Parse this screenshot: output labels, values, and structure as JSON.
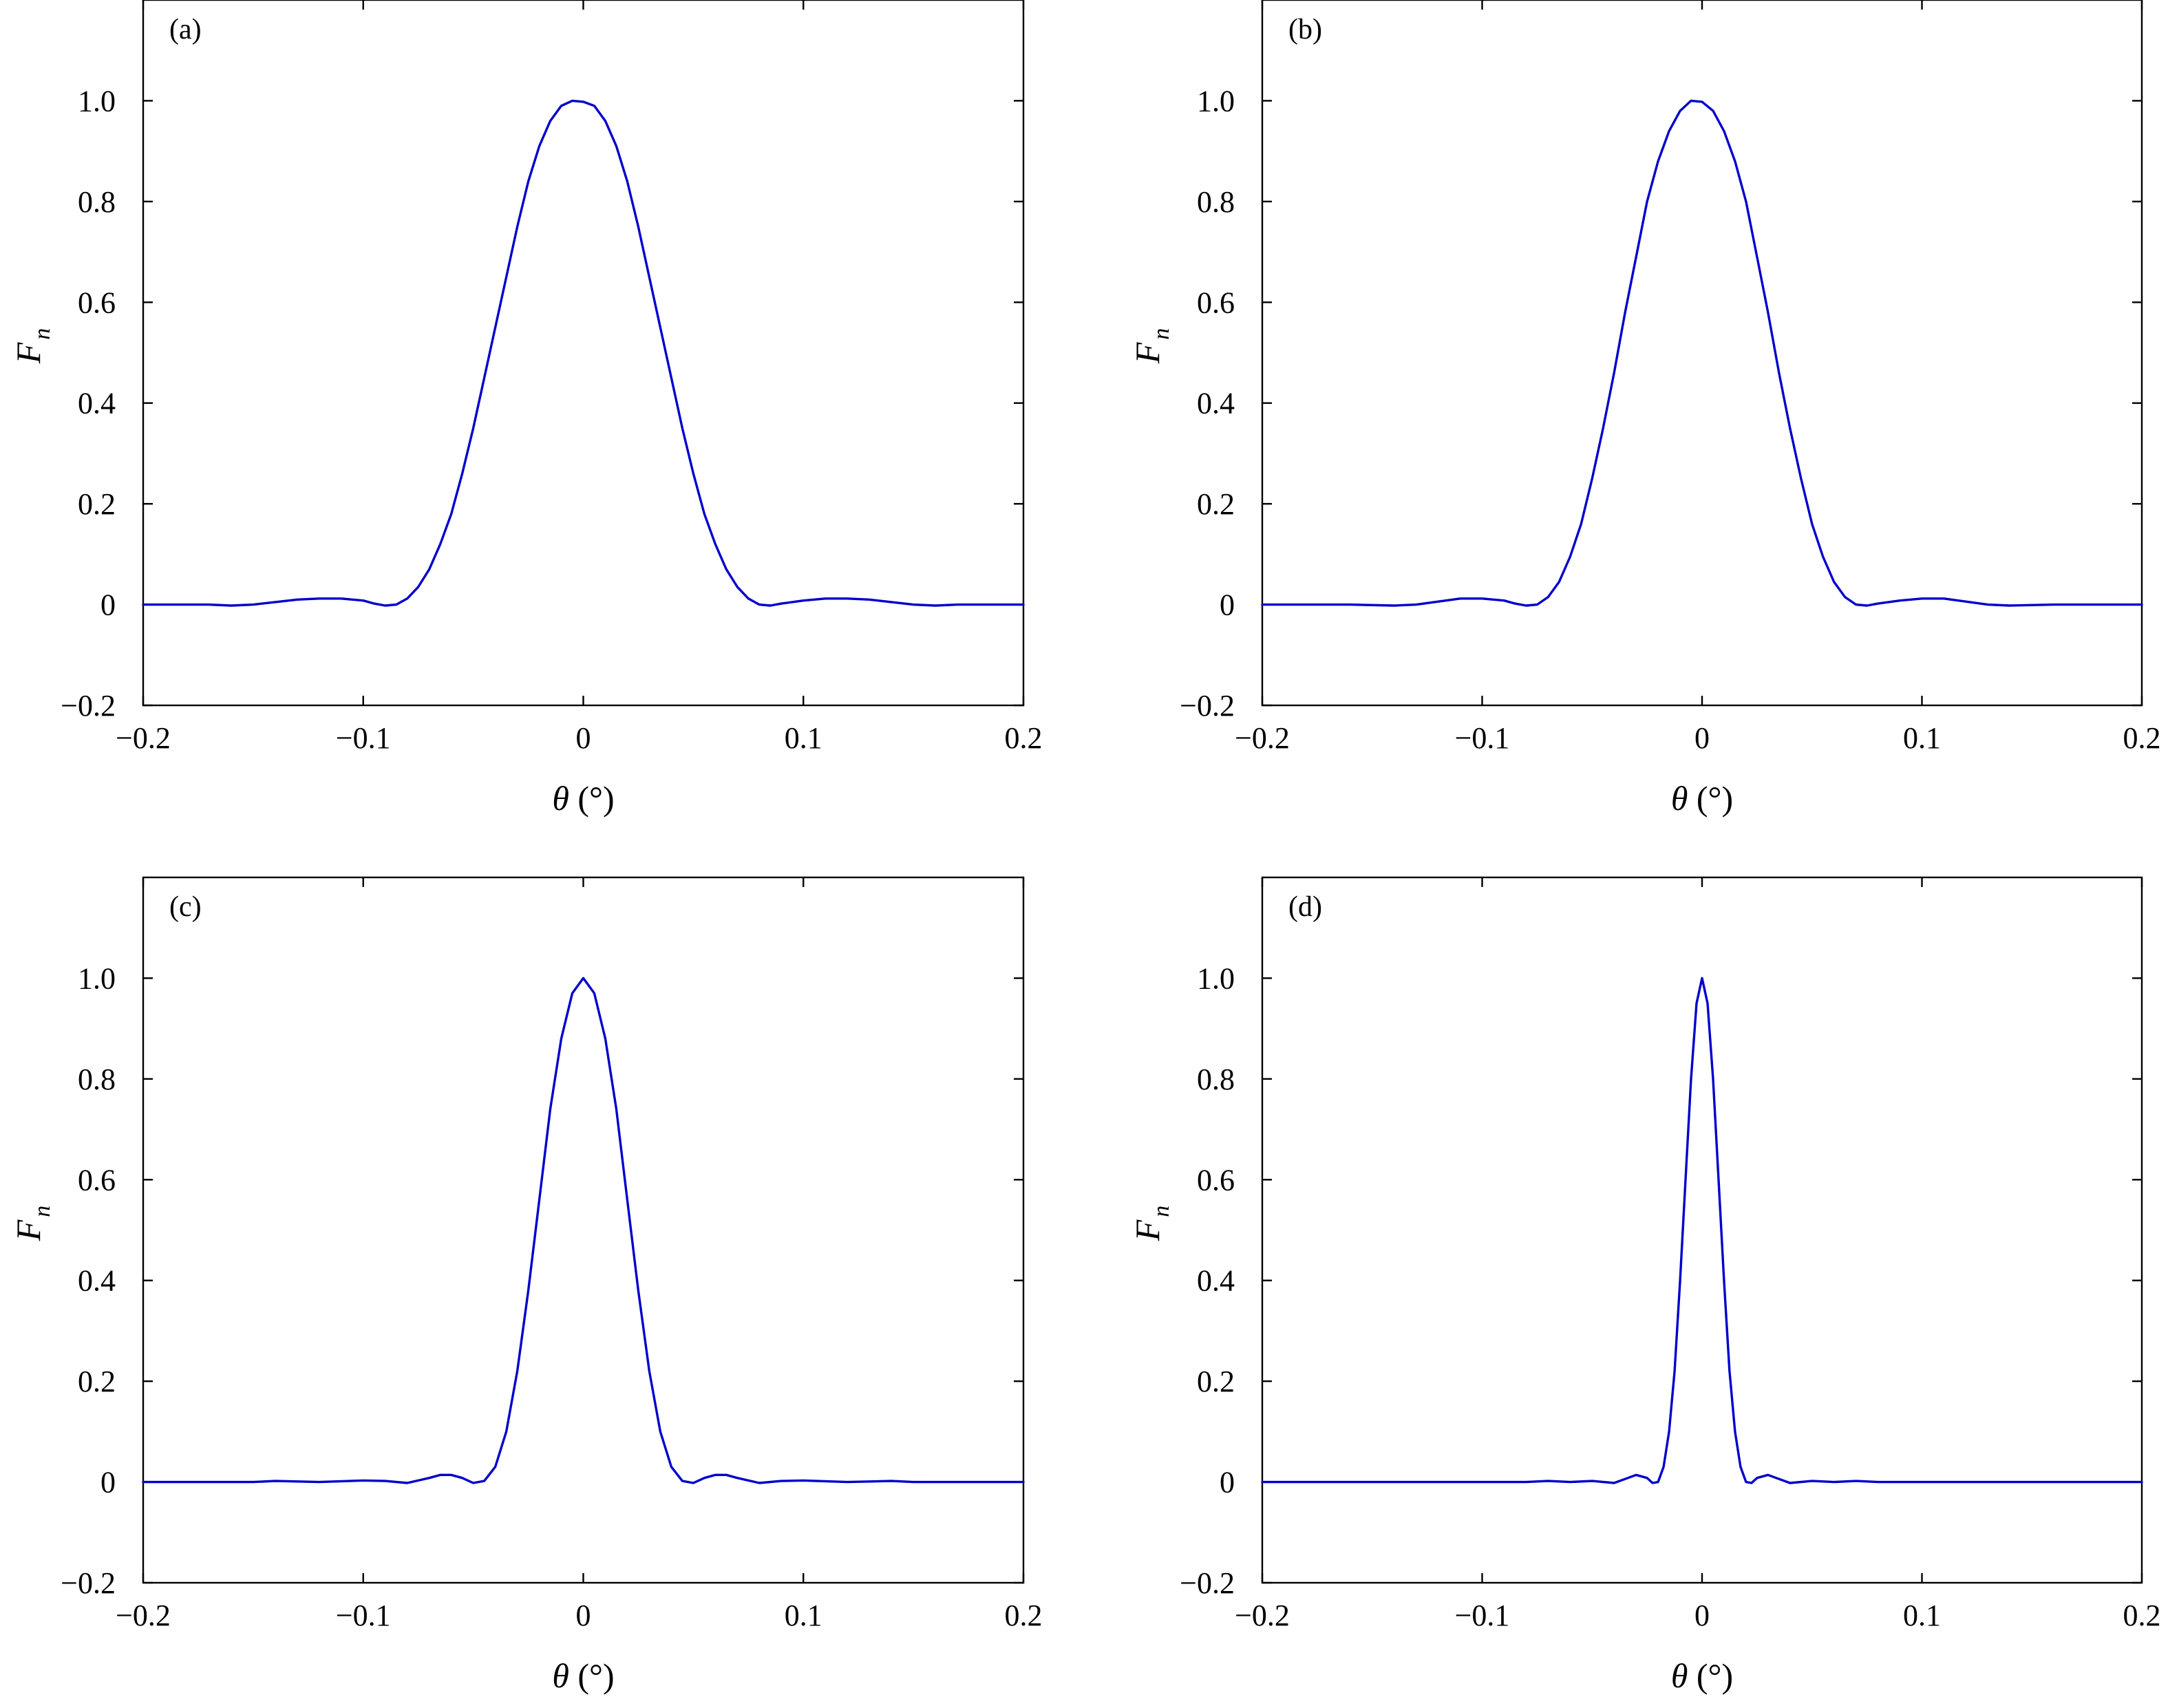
{
  "chart_data": [
    {
      "type": "line",
      "panel_label": "(a)",
      "xlabel_symbol": "θ",
      "xlabel_unit": " (°)",
      "ylabel_main": "F",
      "ylabel_sub": "n",
      "xlim": [
        -0.2,
        0.2
      ],
      "ylim": [
        -0.2,
        1.2
      ],
      "xticks": [
        -0.2,
        -0.1,
        0,
        0.1,
        0.2
      ],
      "xtick_labels": [
        "−0.2",
        "−0.1",
        "0",
        "0.1",
        "0.2"
      ],
      "yticks": [
        -0.2,
        0,
        0.2,
        0.4,
        0.6,
        0.8,
        1.0
      ],
      "ytick_labels": [
        "−0.2",
        "0",
        "0.2",
        "0.4",
        "0.6",
        "0.8",
        "1.0"
      ],
      "grid": false,
      "series": [
        {
          "color": "#0000cc",
          "x": [
            -0.2,
            -0.17,
            -0.16,
            -0.15,
            -0.14,
            -0.13,
            -0.12,
            -0.11,
            -0.1,
            -0.095,
            -0.09,
            -0.085,
            -0.08,
            -0.075,
            -0.07,
            -0.065,
            -0.06,
            -0.055,
            -0.05,
            -0.045,
            -0.04,
            -0.035,
            -0.03,
            -0.025,
            -0.02,
            -0.015,
            -0.01,
            -0.005,
            0,
            0.005,
            0.01,
            0.015,
            0.02,
            0.025,
            0.03,
            0.035,
            0.04,
            0.045,
            0.05,
            0.055,
            0.06,
            0.065,
            0.07,
            0.075,
            0.08,
            0.085,
            0.09,
            0.1,
            0.11,
            0.12,
            0.13,
            0.14,
            0.15,
            0.16,
            0.17,
            0.2
          ],
          "y": [
            0,
            0,
            -0.002,
            0,
            0.005,
            0.01,
            0.012,
            0.012,
            0.008,
            0.002,
            -0.002,
            0.0,
            0.012,
            0.035,
            0.07,
            0.12,
            0.18,
            0.26,
            0.35,
            0.45,
            0.55,
            0.65,
            0.75,
            0.84,
            0.91,
            0.96,
            0.99,
            1.0,
            0.998,
            0.99,
            0.96,
            0.91,
            0.84,
            0.75,
            0.65,
            0.55,
            0.45,
            0.35,
            0.26,
            0.18,
            0.12,
            0.07,
            0.035,
            0.012,
            0.0,
            -0.002,
            0.002,
            0.008,
            0.012,
            0.012,
            0.01,
            0.005,
            0,
            -0.002,
            0,
            0
          ]
        }
      ]
    },
    {
      "type": "line",
      "panel_label": "(b)",
      "xlabel_symbol": "θ",
      "xlabel_unit": " (°)",
      "ylabel_main": "F",
      "ylabel_sub": "n",
      "xlim": [
        -0.2,
        0.2
      ],
      "ylim": [
        -0.2,
        1.2
      ],
      "xticks": [
        -0.2,
        -0.1,
        0,
        0.1,
        0.2
      ],
      "xtick_labels": [
        "−0.2",
        "−0.1",
        "0",
        "0.1",
        "0.2"
      ],
      "yticks": [
        -0.2,
        0,
        0.2,
        0.4,
        0.6,
        0.8,
        1.0
      ],
      "ytick_labels": [
        "−0.2",
        "0",
        "0.2",
        "0.4",
        "0.6",
        "0.8",
        "1.0"
      ],
      "grid": false,
      "series": [
        {
          "color": "#0000cc",
          "x": [
            -0.2,
            -0.16,
            -0.14,
            -0.13,
            -0.12,
            -0.11,
            -0.1,
            -0.09,
            -0.085,
            -0.08,
            -0.075,
            -0.07,
            -0.065,
            -0.06,
            -0.055,
            -0.05,
            -0.045,
            -0.04,
            -0.035,
            -0.03,
            -0.025,
            -0.02,
            -0.015,
            -0.01,
            -0.005,
            0,
            0.005,
            0.01,
            0.015,
            0.02,
            0.025,
            0.03,
            0.035,
            0.04,
            0.045,
            0.05,
            0.055,
            0.06,
            0.065,
            0.07,
            0.075,
            0.08,
            0.09,
            0.1,
            0.11,
            0.12,
            0.13,
            0.14,
            0.16,
            0.2
          ],
          "y": [
            0,
            0,
            -0.002,
            0,
            0.006,
            0.012,
            0.012,
            0.008,
            0.002,
            -0.002,
            0.0,
            0.015,
            0.045,
            0.095,
            0.16,
            0.25,
            0.35,
            0.46,
            0.58,
            0.69,
            0.8,
            0.88,
            0.94,
            0.98,
            1.0,
            0.998,
            0.98,
            0.94,
            0.88,
            0.8,
            0.69,
            0.58,
            0.46,
            0.35,
            0.25,
            0.16,
            0.095,
            0.045,
            0.015,
            0.0,
            -0.002,
            0.002,
            0.008,
            0.012,
            0.012,
            0.006,
            0,
            -0.002,
            0,
            0
          ]
        }
      ]
    },
    {
      "type": "line",
      "panel_label": "(c)",
      "xlabel_symbol": "θ",
      "xlabel_unit": " (°)",
      "ylabel_main": "F",
      "ylabel_sub": "n",
      "xlim": [
        -0.2,
        0.2
      ],
      "ylim": [
        -0.2,
        1.2
      ],
      "xticks": [
        -0.2,
        -0.1,
        0,
        0.1,
        0.2
      ],
      "xtick_labels": [
        "−0.2",
        "−0.1",
        "0",
        "0.1",
        "0.2"
      ],
      "yticks": [
        -0.2,
        0,
        0.2,
        0.4,
        0.6,
        0.8,
        1.0
      ],
      "ytick_labels": [
        "−0.2",
        "0",
        "0.2",
        "0.4",
        "0.6",
        "0.8",
        "1.0"
      ],
      "grid": false,
      "series": [
        {
          "color": "#0000cc",
          "x": [
            -0.2,
            -0.15,
            -0.14,
            -0.12,
            -0.1,
            -0.09,
            -0.08,
            -0.07,
            -0.065,
            -0.06,
            -0.055,
            -0.05,
            -0.045,
            -0.04,
            -0.035,
            -0.03,
            -0.025,
            -0.02,
            -0.015,
            -0.01,
            -0.005,
            0,
            0.005,
            0.01,
            0.015,
            0.02,
            0.025,
            0.03,
            0.035,
            0.04,
            0.045,
            0.05,
            0.055,
            0.06,
            0.065,
            0.07,
            0.08,
            0.09,
            0.1,
            0.12,
            0.14,
            0.15,
            0.2
          ],
          "y": [
            0,
            0,
            0.002,
            0,
            0.003,
            0.002,
            -0.002,
            0.008,
            0.014,
            0.014,
            0.008,
            -0.002,
            0.002,
            0.03,
            0.1,
            0.22,
            0.38,
            0.56,
            0.74,
            0.88,
            0.97,
            1.0,
            0.97,
            0.88,
            0.74,
            0.56,
            0.38,
            0.22,
            0.1,
            0.03,
            0.002,
            -0.002,
            0.008,
            0.014,
            0.014,
            0.008,
            -0.002,
            0.002,
            0.003,
            0,
            0.002,
            0,
            0
          ]
        }
      ]
    },
    {
      "type": "line",
      "panel_label": "(d)",
      "xlabel_symbol": "θ",
      "xlabel_unit": " (°)",
      "ylabel_main": "F",
      "ylabel_sub": "n",
      "xlim": [
        -0.2,
        0.2
      ],
      "ylim": [
        -0.2,
        1.2
      ],
      "xticks": [
        -0.2,
        -0.1,
        0,
        0.1,
        0.2
      ],
      "xtick_labels": [
        "−0.2",
        "−0.1",
        "0",
        "0.1",
        "0.2"
      ],
      "yticks": [
        -0.2,
        0,
        0.2,
        0.4,
        0.6,
        0.8,
        1.0
      ],
      "ytick_labels": [
        "−0.2",
        "0",
        "0.2",
        "0.4",
        "0.6",
        "0.8",
        "1.0"
      ],
      "grid": false,
      "series": [
        {
          "color": "#0000cc",
          "x": [
            -0.2,
            -0.08,
            -0.07,
            -0.06,
            -0.05,
            -0.04,
            -0.035,
            -0.03,
            -0.025,
            -0.0225,
            -0.02,
            -0.0175,
            -0.015,
            -0.0125,
            -0.01,
            -0.0075,
            -0.005,
            -0.0025,
            0,
            0.0025,
            0.005,
            0.0075,
            0.01,
            0.0125,
            0.015,
            0.0175,
            0.02,
            0.0225,
            0.025,
            0.03,
            0.035,
            0.04,
            0.05,
            0.06,
            0.07,
            0.08,
            0.2
          ],
          "y": [
            0,
            0,
            0.002,
            0,
            0.002,
            -0.002,
            0.006,
            0.014,
            0.008,
            -0.002,
            0.0,
            0.03,
            0.1,
            0.22,
            0.4,
            0.6,
            0.8,
            0.95,
            1.0,
            0.95,
            0.8,
            0.6,
            0.4,
            0.22,
            0.1,
            0.03,
            0.0,
            -0.002,
            0.008,
            0.014,
            0.006,
            -0.002,
            0.002,
            0,
            0.002,
            0,
            0
          ]
        }
      ]
    }
  ]
}
